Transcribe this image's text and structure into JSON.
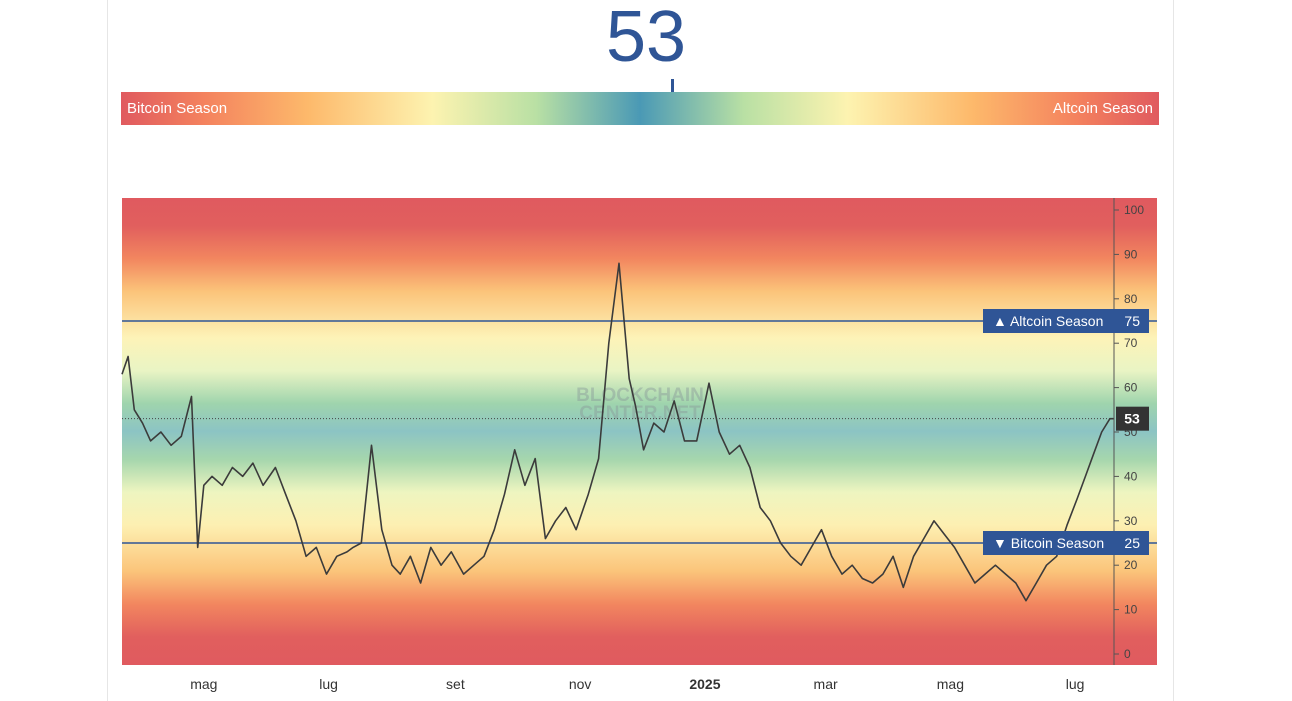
{
  "index": {
    "value": "53",
    "left_label": "Bitcoin Season",
    "right_label": "Altcoin Season"
  },
  "watermark": [
    "BLOCKCHAIN",
    "CENTER.NET"
  ],
  "chart_data": {
    "type": "line",
    "title": "",
    "xlabel": "",
    "ylabel": "",
    "ylim": [
      0,
      100
    ],
    "y_ticks": [
      "100",
      "90",
      "80",
      "70",
      "60",
      "50",
      "40",
      "30",
      "20",
      "10",
      "0"
    ],
    "x_ticks": [
      "mag",
      "lug",
      "set",
      "nov",
      "2025",
      "mar",
      "mag",
      "lug"
    ],
    "x_tick_dates": [
      "2024-05-01",
      "2024-07-01",
      "2024-09-01",
      "2024-11-01",
      "2025-01-01",
      "2025-03-01",
      "2025-05-01",
      "2025-07-01"
    ],
    "x_range": [
      "2024-03-22",
      "2025-07-20"
    ],
    "thresholds": [
      {
        "label": "▲ Altcoin Season",
        "value": 75,
        "value_text": "75"
      },
      {
        "label": "▼ Bitcoin Season",
        "value": 25,
        "value_text": "25"
      }
    ],
    "current": {
      "value": 53,
      "value_text": "53"
    },
    "series": [
      {
        "x": [
          "2024-03-22",
          "2024-03-25",
          "2024-03-28",
          "2024-04-01",
          "2024-04-05",
          "2024-04-10",
          "2024-04-15",
          "2024-04-20",
          "2024-04-25",
          "2024-04-28",
          "2024-05-01",
          "2024-05-05",
          "2024-05-10",
          "2024-05-15",
          "2024-05-20",
          "2024-05-25",
          "2024-05-30",
          "2024-06-05",
          "2024-06-10",
          "2024-06-15",
          "2024-06-20",
          "2024-06-25",
          "2024-06-30",
          "2024-07-05",
          "2024-07-10",
          "2024-07-13",
          "2024-07-17",
          "2024-07-22",
          "2024-07-27",
          "2024-08-01",
          "2024-08-05",
          "2024-08-10",
          "2024-08-15",
          "2024-08-20",
          "2024-08-25",
          "2024-08-30",
          "2024-09-05",
          "2024-09-10",
          "2024-09-15",
          "2024-09-20",
          "2024-09-25",
          "2024-09-30",
          "2024-10-05",
          "2024-10-10",
          "2024-10-15",
          "2024-10-20",
          "2024-10-25",
          "2024-10-30",
          "2024-11-05",
          "2024-11-10",
          "2024-11-15",
          "2024-11-20",
          "2024-11-25",
          "2024-11-28",
          "2024-12-02",
          "2024-12-07",
          "2024-12-12",
          "2024-12-17",
          "2024-12-22",
          "2024-12-28",
          "2025-01-03",
          "2025-01-08",
          "2025-01-13",
          "2025-01-18",
          "2025-01-23",
          "2025-01-28",
          "2025-02-02",
          "2025-02-07",
          "2025-02-12",
          "2025-02-17",
          "2025-02-22",
          "2025-02-27",
          "2025-03-04",
          "2025-03-09",
          "2025-03-14",
          "2025-03-19",
          "2025-03-24",
          "2025-03-29",
          "2025-04-03",
          "2025-04-08",
          "2025-04-13",
          "2025-04-18",
          "2025-04-23",
          "2025-04-28",
          "2025-05-03",
          "2025-05-08",
          "2025-05-13",
          "2025-05-18",
          "2025-05-23",
          "2025-05-28",
          "2025-06-02",
          "2025-06-07",
          "2025-06-12",
          "2025-06-17",
          "2025-06-22",
          "2025-06-27",
          "2025-07-02",
          "2025-07-06",
          "2025-07-10",
          "2025-07-14",
          "2025-07-18",
          "2025-07-20"
        ],
        "values": [
          63,
          67,
          55,
          52,
          48,
          50,
          47,
          49,
          58,
          24,
          38,
          40,
          38,
          42,
          40,
          43,
          38,
          42,
          36,
          30,
          22,
          24,
          18,
          22,
          23,
          24,
          25,
          47,
          28,
          20,
          18,
          22,
          16,
          24,
          20,
          23,
          18,
          20,
          22,
          28,
          36,
          46,
          38,
          44,
          26,
          30,
          33,
          28,
          36,
          44,
          70,
          88,
          62,
          56,
          46,
          52,
          50,
          57,
          48,
          48,
          61,
          50,
          45,
          47,
          42,
          33,
          30,
          25,
          22,
          20,
          24,
          28,
          22,
          18,
          20,
          17,
          16,
          18,
          22,
          15,
          22,
          26,
          30,
          27,
          24,
          20,
          16,
          18,
          20,
          18,
          16,
          12,
          16,
          20,
          22,
          29,
          35,
          40,
          45,
          50,
          53,
          53
        ]
      }
    ]
  }
}
